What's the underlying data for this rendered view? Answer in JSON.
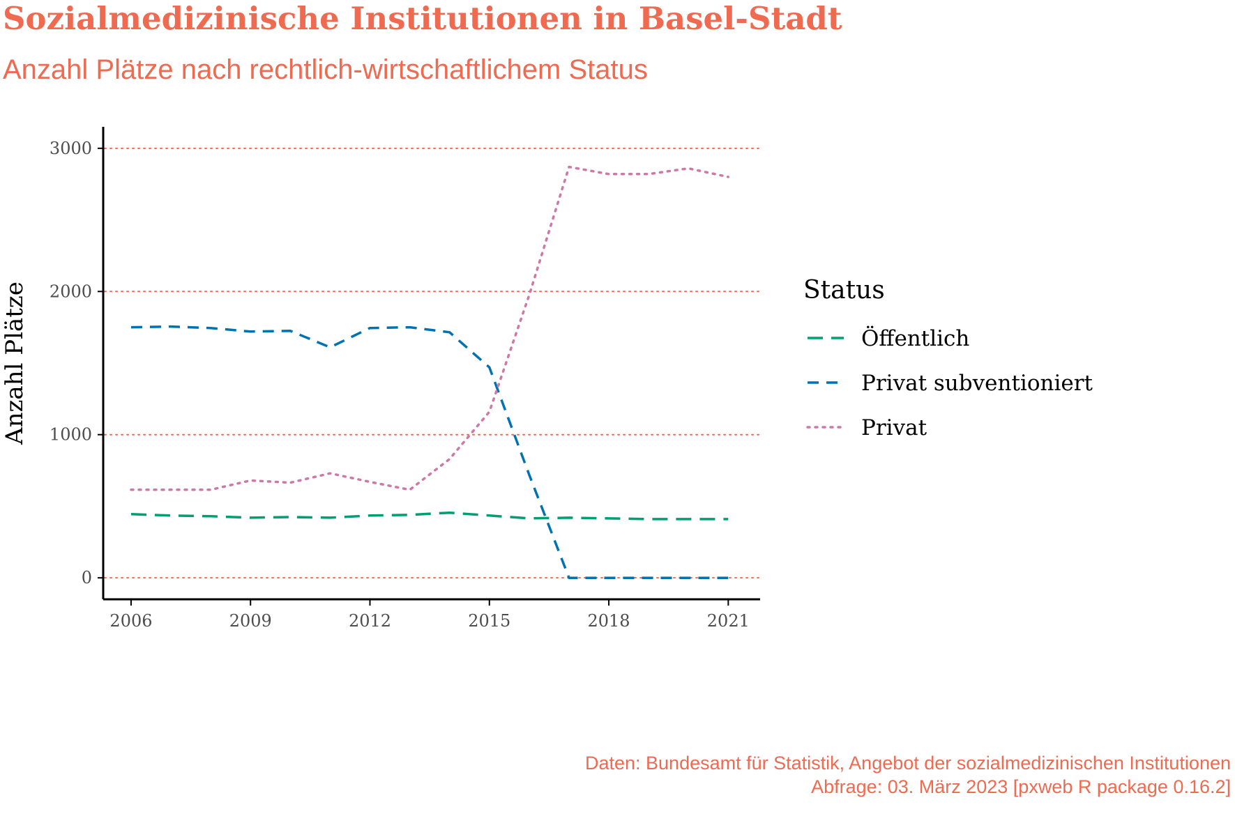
{
  "title": "Sozialmedizinische Institutionen in Basel-Stadt",
  "subtitle": "Anzahl Plätze nach rechtlich-wirtschaftlichem Status",
  "caption": {
    "line1": "Daten: Bundesamt für Statistik, Angebot der sozialmedizinischen Institutionen",
    "line2": "Abfrage: 03. März 2023 [pxweb R package 0.16.2]"
  },
  "colors": {
    "accent": "#ee6a50",
    "gridline": "#ee6a50",
    "oeffentlich": "#009e73",
    "privat_subventioniert": "#0072b2",
    "privat": "#cc79a7"
  },
  "chart_data": {
    "type": "line",
    "title": "Sozialmedizinische Institutionen in Basel-Stadt",
    "subtitle": "Anzahl Plätze nach rechtlich-wirtschaftlichem Status",
    "xlabel": "",
    "ylabel": "Anzahl Plätze",
    "xlim": [
      2005.3,
      2021.8
    ],
    "ylim": [
      -150,
      3150
    ],
    "x_ticks": [
      2006,
      2009,
      2012,
      2015,
      2018,
      2021
    ],
    "y_ticks": [
      0,
      1000,
      2000,
      3000
    ],
    "grid": "horizontal dotted",
    "legend_title": "Status",
    "legend_position": "right",
    "x": [
      2006,
      2007,
      2008,
      2009,
      2010,
      2011,
      2012,
      2013,
      2014,
      2015,
      2016,
      2017,
      2018,
      2019,
      2020,
      2021
    ],
    "series": [
      {
        "name": "Öffentlich",
        "color": "#009e73",
        "dash": "long-dash",
        "values": [
          445,
          435,
          430,
          420,
          425,
          420,
          435,
          440,
          455,
          435,
          415,
          420,
          415,
          410,
          410,
          410
        ]
      },
      {
        "name": "Privat subventioniert",
        "color": "#0072b2",
        "dash": "dash",
        "values": [
          1750,
          1755,
          1745,
          1720,
          1725,
          1610,
          1745,
          1750,
          1715,
          1470,
          720,
          0,
          0,
          0,
          0,
          0
        ]
      },
      {
        "name": "Privat",
        "color": "#cc79a7",
        "dash": "dotted",
        "values": [
          615,
          615,
          615,
          680,
          665,
          730,
          670,
          615,
          830,
          1160,
          1975,
          2870,
          2820,
          2820,
          2860,
          2800
        ]
      }
    ]
  }
}
